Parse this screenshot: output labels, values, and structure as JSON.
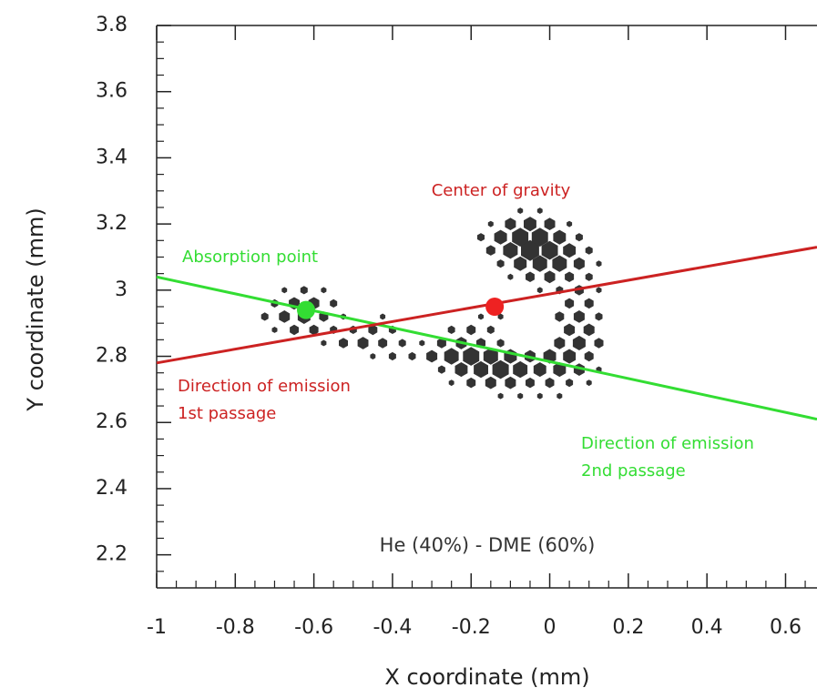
{
  "chart_data": {
    "type": "scatter",
    "x_label": "X coordinate (mm)",
    "y_label": "Y coordinate (mm)",
    "xlim": [
      -1,
      0.68
    ],
    "ylim": [
      2.1,
      3.8
    ],
    "xticks": [
      -1,
      -0.8,
      -0.6,
      -0.4,
      -0.2,
      0,
      0.2,
      0.4,
      0.6
    ],
    "yticks": [
      2.2,
      2.4,
      2.6,
      2.8,
      3,
      3.2,
      3.4,
      3.6,
      3.8
    ],
    "minor_ticks": 3,
    "pixels": {
      "color": "#333333",
      "x": [
        -0.075,
        -0.025,
        -0.15,
        -0.1,
        -0.05,
        0,
        0.05,
        -0.175,
        -0.125,
        -0.075,
        -0.025,
        0.025,
        0.075,
        -0.15,
        -0.1,
        -0.05,
        0,
        0.05,
        0.1,
        -0.125,
        -0.075,
        -0.025,
        0.025,
        0.075,
        0.125,
        -0.1,
        -0.05,
        0,
        0.05,
        0.1,
        -0.025,
        0.025,
        0.075,
        0.125,
        -0.675,
        -0.625,
        -0.575,
        -0.7,
        -0.65,
        -0.6,
        -0.55,
        0.05,
        0.1,
        -0.725,
        -0.675,
        -0.625,
        -0.575,
        -0.525,
        -0.425,
        -0.175,
        -0.125,
        0.025,
        0.075,
        0.125,
        -0.7,
        -0.65,
        -0.6,
        -0.55,
        -0.5,
        -0.45,
        -0.4,
        -0.25,
        -0.2,
        -0.15,
        0.05,
        0.1,
        -0.575,
        -0.525,
        -0.475,
        -0.425,
        -0.375,
        -0.325,
        -0.275,
        -0.225,
        -0.175,
        -0.125,
        0.025,
        0.075,
        0.125,
        -0.45,
        -0.4,
        -0.35,
        -0.3,
        -0.25,
        -0.2,
        -0.15,
        -0.1,
        -0.05,
        0,
        0.05,
        0.1,
        -0.275,
        -0.225,
        -0.175,
        -0.125,
        -0.075,
        -0.025,
        0.025,
        0.075,
        0.125,
        -0.25,
        -0.2,
        -0.15,
        -0.1,
        -0.05,
        0,
        0.05,
        0.1,
        -0.125,
        -0.075,
        -0.025,
        0.025
      ],
      "y": [
        3.24,
        3.24,
        3.2,
        3.2,
        3.2,
        3.2,
        3.2,
        3.16,
        3.16,
        3.16,
        3.16,
        3.16,
        3.16,
        3.12,
        3.12,
        3.12,
        3.12,
        3.12,
        3.12,
        3.08,
        3.08,
        3.08,
        3.08,
        3.08,
        3.08,
        3.04,
        3.04,
        3.04,
        3.04,
        3.04,
        3,
        3,
        3,
        3,
        3,
        3,
        3,
        2.96,
        2.96,
        2.96,
        2.96,
        2.96,
        2.96,
        2.92,
        2.92,
        2.92,
        2.92,
        2.92,
        2.92,
        2.92,
        2.92,
        2.92,
        2.92,
        2.92,
        2.88,
        2.88,
        2.88,
        2.88,
        2.88,
        2.88,
        2.88,
        2.88,
        2.88,
        2.88,
        2.88,
        2.88,
        2.84,
        2.84,
        2.84,
        2.84,
        2.84,
        2.84,
        2.84,
        2.84,
        2.84,
        2.84,
        2.84,
        2.84,
        2.84,
        2.8,
        2.8,
        2.8,
        2.8,
        2.8,
        2.8,
        2.8,
        2.8,
        2.8,
        2.8,
        2.8,
        2.8,
        2.76,
        2.76,
        2.76,
        2.76,
        2.76,
        2.76,
        2.76,
        2.76,
        2.76,
        2.72,
        2.72,
        2.72,
        2.72,
        2.72,
        2.72,
        2.72,
        2.72,
        2.68,
        2.68,
        2.68,
        2.68
      ],
      "size": [
        3,
        3,
        3,
        6,
        7,
        6,
        3,
        4,
        7,
        9,
        9,
        7,
        4,
        5,
        8,
        10,
        9,
        7,
        4,
        4,
        7,
        8,
        8,
        6,
        3,
        3,
        5,
        6,
        5,
        4,
        3,
        4,
        5,
        3,
        3,
        4,
        3,
        4,
        6,
        6,
        4,
        5,
        5,
        4,
        6,
        7,
        5,
        3,
        3,
        3,
        3,
        5,
        6,
        4,
        3,
        5,
        5,
        4,
        4,
        5,
        4,
        4,
        5,
        4,
        6,
        6,
        3,
        5,
        6,
        5,
        4,
        3,
        5,
        6,
        5,
        4,
        6,
        7,
        5,
        3,
        4,
        4,
        6,
        8,
        9,
        8,
        7,
        6,
        7,
        7,
        5,
        4,
        7,
        8,
        9,
        8,
        7,
        7,
        6,
        3,
        3,
        5,
        6,
        6,
        5,
        5,
        4,
        3,
        3,
        3,
        3,
        3
      ]
    },
    "lines": [
      {
        "color": "#cc2222",
        "x": [
          -1,
          0.68
        ],
        "y": [
          2.78,
          3.13
        ]
      },
      {
        "color": "#33dd33",
        "x": [
          -1,
          0.68
        ],
        "y": [
          3.04,
          2.61
        ]
      }
    ],
    "points": [
      {
        "color": "#33dd33",
        "x": -0.62,
        "y": 2.94
      },
      {
        "color": "#ee2222",
        "x": -0.14,
        "y": 2.95
      }
    ],
    "annotations": {
      "center": "Center of gravity",
      "absorption": "Absorption point",
      "first": [
        "Direction of emission",
        "1st passage"
      ],
      "second": [
        "Direction of emission",
        "2nd passage"
      ],
      "gas": "He (40%) - DME (60%)"
    }
  }
}
